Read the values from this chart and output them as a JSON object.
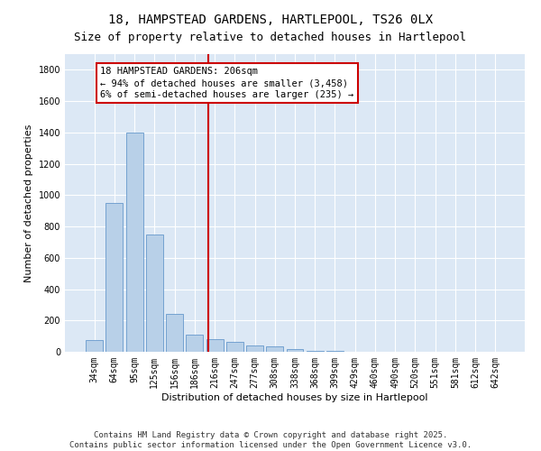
{
  "title_line1": "18, HAMPSTEAD GARDENS, HARTLEPOOL, TS26 0LX",
  "title_line2": "Size of property relative to detached houses in Hartlepool",
  "xlabel": "Distribution of detached houses by size in Hartlepool",
  "ylabel": "Number of detached properties",
  "categories": [
    "34sqm",
    "64sqm",
    "95sqm",
    "125sqm",
    "156sqm",
    "186sqm",
    "216sqm",
    "247sqm",
    "277sqm",
    "308sqm",
    "338sqm",
    "368sqm",
    "399sqm",
    "429sqm",
    "460sqm",
    "490sqm",
    "520sqm",
    "551sqm",
    "581sqm",
    "612sqm",
    "642sqm"
  ],
  "values": [
    75,
    950,
    1400,
    750,
    240,
    110,
    80,
    65,
    40,
    35,
    20,
    5,
    3,
    2,
    1,
    0,
    0,
    0,
    0,
    0,
    0
  ],
  "bar_color": "#b8d0e8",
  "bar_edgecolor": "#6699cc",
  "fig_bg_color": "#ffffff",
  "ax_bg_color": "#dce8f5",
  "vline_color": "#cc0000",
  "annotation_text": "18 HAMPSTEAD GARDENS: 206sqm\n← 94% of detached houses are smaller (3,458)\n6% of semi-detached houses are larger (235) →",
  "annotation_box_edgecolor": "#cc0000",
  "ylim": [
    0,
    1900
  ],
  "yticks": [
    0,
    200,
    400,
    600,
    800,
    1000,
    1200,
    1400,
    1600,
    1800
  ],
  "grid_color": "#ffffff",
  "title_fontsize": 10,
  "subtitle_fontsize": 9,
  "xlabel_fontsize": 8,
  "ylabel_fontsize": 8,
  "tick_fontsize": 7,
  "annotation_fontsize": 7.5,
  "footer_fontsize": 6.5
}
